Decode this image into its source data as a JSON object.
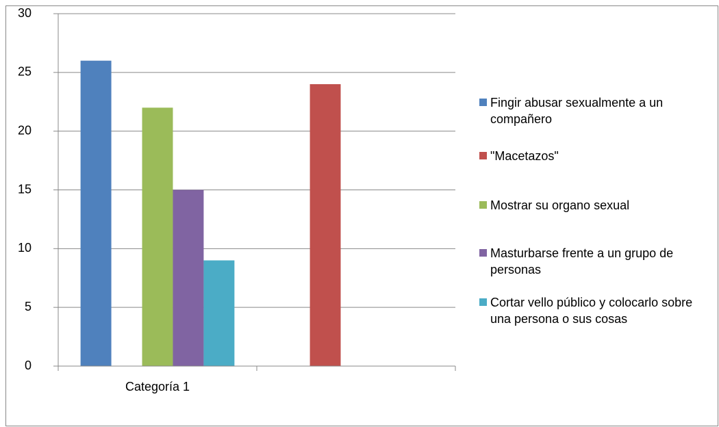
{
  "chart_data": {
    "type": "bar",
    "categories": [
      "Categoría 1",
      null
    ],
    "series": [
      {
        "name": "Fingir abusar sexualmente a un compañero",
        "color": "#4f81bd",
        "values": [
          26,
          null
        ]
      },
      {
        "name": "\"Macetazos\"",
        "color": "#c0504d",
        "values": [
          null,
          24
        ]
      },
      {
        "name": "Mostrar su organo sexual",
        "color": "#9bbb59",
        "values": [
          22,
          null
        ]
      },
      {
        "name": "Masturbarse frente a un grupo de personas",
        "color": "#8064a2",
        "values": [
          15,
          null
        ]
      },
      {
        "name": "Cortar vello público y colocarlo sobre una persona o sus cosas",
        "color": "#4bacc6",
        "values": [
          9,
          null
        ]
      }
    ],
    "ylim": [
      0,
      30
    ],
    "yticks": [
      0,
      5,
      10,
      15,
      20,
      25,
      30
    ],
    "grid": true,
    "legend": "right"
  }
}
